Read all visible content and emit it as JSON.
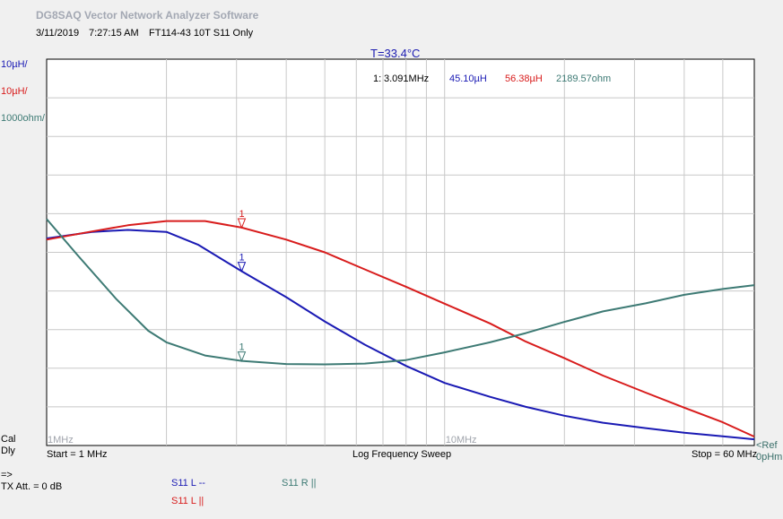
{
  "header": {
    "app_title": "DG8SAQ Vector Network Analyzer Software",
    "date": "3/11/2019",
    "time": "7:27:15 AM",
    "measurement": "FT114-43 10T S11 Only",
    "temperature": "T=33.4°C"
  },
  "colors": {
    "series_l_series": "#1a1ab4",
    "series_l_parallel": "#d81c1c",
    "series_r_parallel": "#3d7a74",
    "grid": "#c8c8c8",
    "plot_bg": "#ffffff"
  },
  "scale_labels": {
    "blue": "10µH/",
    "red": "10µH/",
    "teal": "1000ohm/"
  },
  "marker_readout": {
    "marker": "1:",
    "frequency": "3.091MHz",
    "l_series": "45.10µH",
    "l_parallel": "56.38µH",
    "r_parallel": "2189.57ohm"
  },
  "left_labels": {
    "cal": "Cal",
    "dly": "Dly",
    "arrow": "=>",
    "tx_att": "TX Att. = 0 dB"
  },
  "footer": {
    "start": "Start = 1 MHz",
    "sweep": "Log Frequency Sweep",
    "stop": "Stop = 60 MHz"
  },
  "reference": {
    "ref": "<Ref",
    "value": "0pHm"
  },
  "legend": [
    {
      "label": "S11  L --",
      "color": "#1a1ab4"
    },
    {
      "label": "S11  L ||",
      "color": "#d81c1c"
    },
    {
      "label": "S11  R ||",
      "color": "#3d7a74"
    }
  ],
  "chart_data": {
    "type": "line",
    "x_scale": "log",
    "xlim": [
      1,
      60
    ],
    "x_unit": "MHz",
    "x_tick_labels": [
      "1MHz",
      "10MHz"
    ],
    "x_tick_values": [
      1,
      10
    ],
    "grid": true,
    "y_divisions": 10,
    "marker_x": 3.091,
    "series": [
      {
        "name": "S11  L --",
        "axis": "blue",
        "y_unit": "µH",
        "ylim": [
          0,
          100
        ],
        "points": [
          [
            1,
            53.6
          ],
          [
            1.3,
            55.3
          ],
          [
            1.6,
            55.8
          ],
          [
            2,
            55.3
          ],
          [
            2.4,
            52.0
          ],
          [
            3.091,
            45.1
          ],
          [
            4,
            38.4
          ],
          [
            5,
            32.1
          ],
          [
            6.3,
            26.1
          ],
          [
            8,
            20.6
          ],
          [
            10,
            16.2
          ],
          [
            13,
            12.6
          ],
          [
            16,
            10.0
          ],
          [
            20,
            7.7
          ],
          [
            25,
            5.9
          ],
          [
            32,
            4.5
          ],
          [
            40,
            3.3
          ],
          [
            50,
            2.4
          ],
          [
            60,
            1.6
          ]
        ],
        "marker_value": 45.1
      },
      {
        "name": "S11  L ||",
        "axis": "red",
        "y_unit": "µH",
        "ylim": [
          0,
          100
        ],
        "points": [
          [
            1,
            53.3
          ],
          [
            1.3,
            55.4
          ],
          [
            1.6,
            57.0
          ],
          [
            2,
            58.1
          ],
          [
            2.5,
            58.1
          ],
          [
            3.091,
            56.4
          ],
          [
            4,
            53.3
          ],
          [
            5,
            50.0
          ],
          [
            6.3,
            45.6
          ],
          [
            8,
            41.1
          ],
          [
            10,
            36.7
          ],
          [
            13,
            31.6
          ],
          [
            16,
            26.9
          ],
          [
            20,
            22.6
          ],
          [
            25,
            18.1
          ],
          [
            32,
            13.7
          ],
          [
            40,
            9.8
          ],
          [
            50,
            6.0
          ],
          [
            60,
            2.3
          ]
        ],
        "marker_value": 56.38
      },
      {
        "name": "S11  R ||",
        "axis": "teal",
        "y_unit": "ohm",
        "ylim": [
          0,
          10000
        ],
        "points": [
          [
            1,
            5860
          ],
          [
            1.2,
            4910
          ],
          [
            1.5,
            3780
          ],
          [
            1.8,
            2970
          ],
          [
            2,
            2670
          ],
          [
            2.5,
            2330
          ],
          [
            3.091,
            2190
          ],
          [
            4,
            2110
          ],
          [
            5,
            2100
          ],
          [
            6.3,
            2120
          ],
          [
            8,
            2210
          ],
          [
            10,
            2410
          ],
          [
            13,
            2670
          ],
          [
            16,
            2910
          ],
          [
            20,
            3200
          ],
          [
            25,
            3470
          ],
          [
            32,
            3680
          ],
          [
            40,
            3900
          ],
          [
            50,
            4050
          ],
          [
            60,
            4150
          ]
        ],
        "marker_value": 2189.57
      }
    ]
  }
}
